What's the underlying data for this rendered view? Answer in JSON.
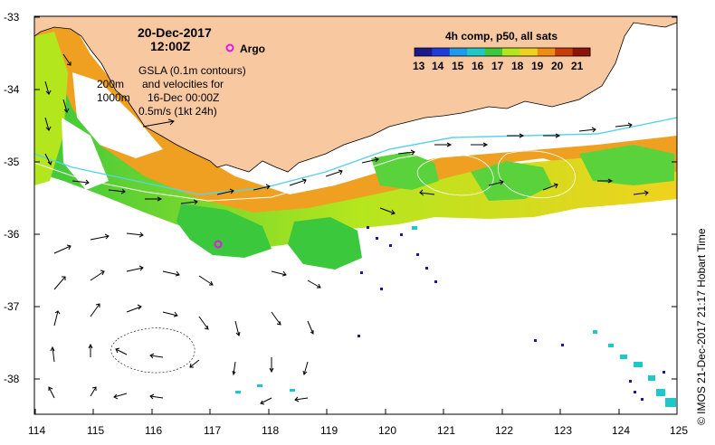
{
  "map": {
    "date": "20-Dec-2017",
    "time": "12:00Z",
    "argo_label": "Argo",
    "legend_title": "4h comp, p50, all sats",
    "colorbar_ticks": [
      "13",
      "14",
      "15",
      "16",
      "17",
      "18",
      "19",
      "20",
      "21"
    ],
    "colorbar_colors": [
      "#1a1a8c",
      "#1e3cdc",
      "#1e9be6",
      "#1ec8c8",
      "#3cc83c",
      "#b4e61e",
      "#f0d21e",
      "#f08c14",
      "#c83c0a",
      "#8c140a"
    ],
    "contour_labels": [
      "200m",
      "1000m"
    ],
    "gsla_lines": [
      "GSLA (0.1m contours)",
      "and velocities for",
      "16-Dec 00:00Z",
      "0.5m/s (1kt 24h)"
    ],
    "lon_ticks": [
      "114",
      "115",
      "116",
      "117",
      "118",
      "119",
      "120",
      "121",
      "122",
      "123",
      "124",
      "125"
    ],
    "lat_ticks": [
      "-33",
      "-34",
      "-35",
      "-36",
      "-37",
      "-38"
    ],
    "credit": "© IMOS 21-Dec-2017 21:17 Hobart Time",
    "land_color": "#f8c8a0"
  }
}
